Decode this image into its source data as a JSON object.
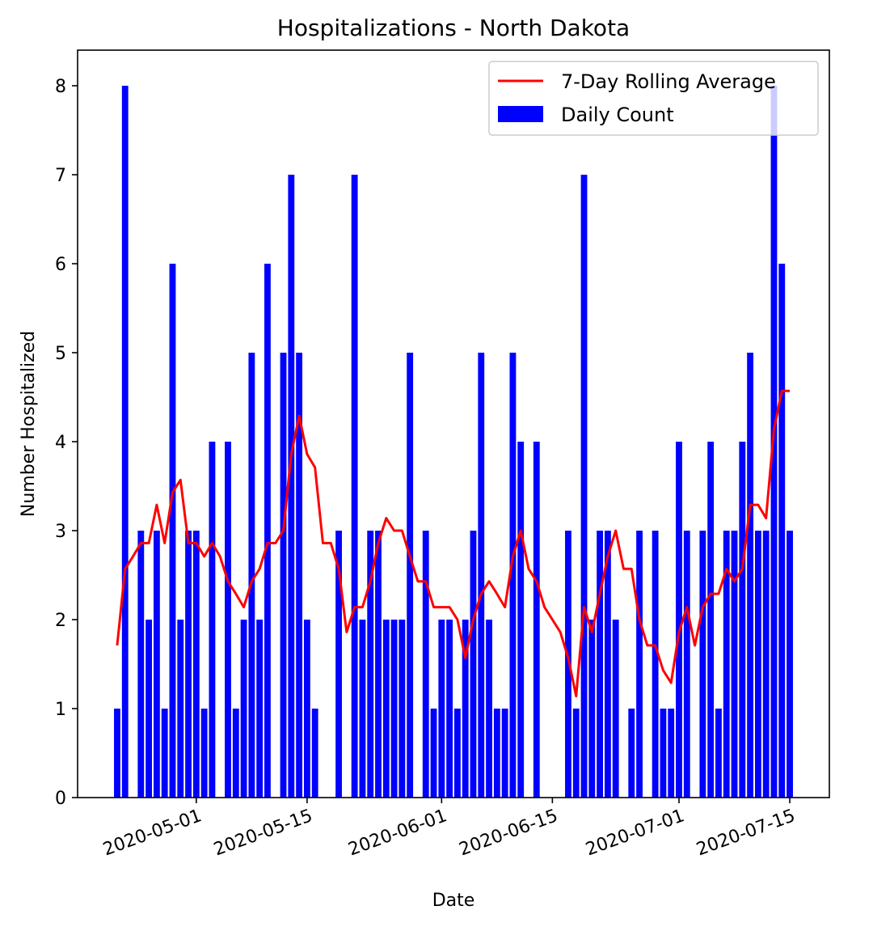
{
  "chart_data": {
    "type": "bar",
    "title": "Hospitalizations - North Dakota",
    "xlabel": "Date",
    "ylabel": "Number Hospitalized",
    "x_start": "2020-04-21",
    "x_end": "2020-07-15",
    "xlim": [
      "2020-04-16",
      "2020-07-20"
    ],
    "ylim": [
      0,
      8.4
    ],
    "x_ticks": [
      "2020-05-01",
      "2020-05-15",
      "2020-06-01",
      "2020-06-15",
      "2020-07-01",
      "2020-07-15"
    ],
    "y_ticks": [
      0,
      1,
      2,
      3,
      4,
      5,
      6,
      7,
      8
    ],
    "legend_position": "top-right",
    "grid": false,
    "series": [
      {
        "name": "Daily Count",
        "kind": "bar",
        "color": "#0000ff",
        "values": [
          1,
          8,
          0,
          3,
          2,
          3,
          1,
          6,
          2,
          3,
          3,
          1,
          4,
          0,
          4,
          1,
          2,
          5,
          2,
          6,
          0,
          5,
          7,
          5,
          2,
          1,
          0,
          0,
          3,
          0,
          7,
          2,
          3,
          3,
          2,
          2,
          2,
          5,
          0,
          3,
          1,
          2,
          2,
          1,
          2,
          3,
          5,
          2,
          1,
          1,
          5,
          4,
          0,
          4,
          0,
          0,
          0,
          3,
          1,
          7,
          2,
          3,
          3,
          2,
          0,
          1,
          3,
          0,
          3,
          1,
          1,
          4,
          3,
          0,
          3,
          4,
          1,
          3,
          3,
          4,
          5,
          3,
          3,
          8,
          6,
          3
        ]
      },
      {
        "name": "7-Day Rolling Average",
        "kind": "line",
        "color": "#ff0000",
        "values": [
          1.71,
          2.57,
          2.71,
          2.86,
          2.86,
          3.29,
          2.86,
          3.43,
          3.57,
          2.86,
          2.86,
          2.71,
          2.86,
          2.71,
          2.43,
          2.29,
          2.14,
          2.43,
          2.57,
          2.86,
          2.86,
          3.0,
          3.86,
          4.29,
          3.86,
          3.71,
          2.86,
          2.86,
          2.57,
          1.86,
          2.14,
          2.14,
          2.43,
          2.86,
          3.14,
          3.0,
          3.0,
          2.71,
          2.43,
          2.43,
          2.14,
          2.14,
          2.14,
          2.0,
          1.57,
          2.0,
          2.29,
          2.43,
          2.29,
          2.14,
          2.71,
          3.0,
          2.57,
          2.43,
          2.14,
          2.0,
          1.86,
          1.57,
          1.14,
          2.14,
          1.86,
          2.29,
          2.71,
          3.0,
          2.57,
          2.57,
          2.0,
          1.71,
          1.71,
          1.43,
          1.29,
          1.86,
          2.14,
          1.71,
          2.14,
          2.29,
          2.29,
          2.57,
          2.43,
          2.57,
          3.29,
          3.29,
          3.14,
          4.14,
          4.57,
          4.57
        ]
      }
    ]
  }
}
